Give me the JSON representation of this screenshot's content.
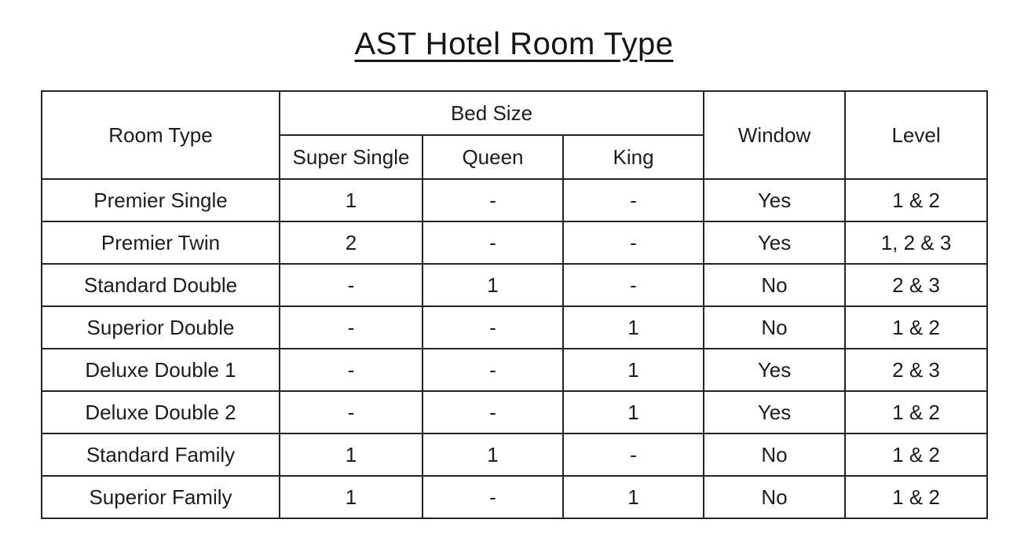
{
  "page": {
    "title": "AST Hotel Room Type"
  },
  "table": {
    "headers": {
      "room_type": "Room Type",
      "bed_size_group": "Bed Size",
      "bed_size_columns": [
        "Super Single",
        "Queen",
        "King"
      ],
      "window": "Window",
      "level": "Level"
    },
    "rows": [
      {
        "room_type": "Premier Single",
        "super_single": "1",
        "queen": "-",
        "king": "-",
        "window": "Yes",
        "level": "1 & 2"
      },
      {
        "room_type": "Premier Twin",
        "super_single": "2",
        "queen": "-",
        "king": "-",
        "window": "Yes",
        "level": "1, 2 & 3"
      },
      {
        "room_type": "Standard Double",
        "super_single": "-",
        "queen": "1",
        "king": "-",
        "window": "No",
        "level": "2 & 3"
      },
      {
        "room_type": "Superior Double",
        "super_single": "-",
        "queen": "-",
        "king": "1",
        "window": "No",
        "level": "1 & 2"
      },
      {
        "room_type": "Deluxe Double 1",
        "super_single": "-",
        "queen": "-",
        "king": "1",
        "window": "Yes",
        "level": "2 & 3"
      },
      {
        "room_type": "Deluxe Double 2",
        "super_single": "-",
        "queen": "-",
        "king": "1",
        "window": "Yes",
        "level": "1 & 2"
      },
      {
        "room_type": "Standard Family",
        "super_single": "1",
        "queen": "1",
        "king": "-",
        "window": "No",
        "level": "1 & 2"
      },
      {
        "room_type": "Superior Family",
        "super_single": "1",
        "queen": "-",
        "king": "1",
        "window": "No",
        "level": "1 & 2"
      }
    ]
  }
}
